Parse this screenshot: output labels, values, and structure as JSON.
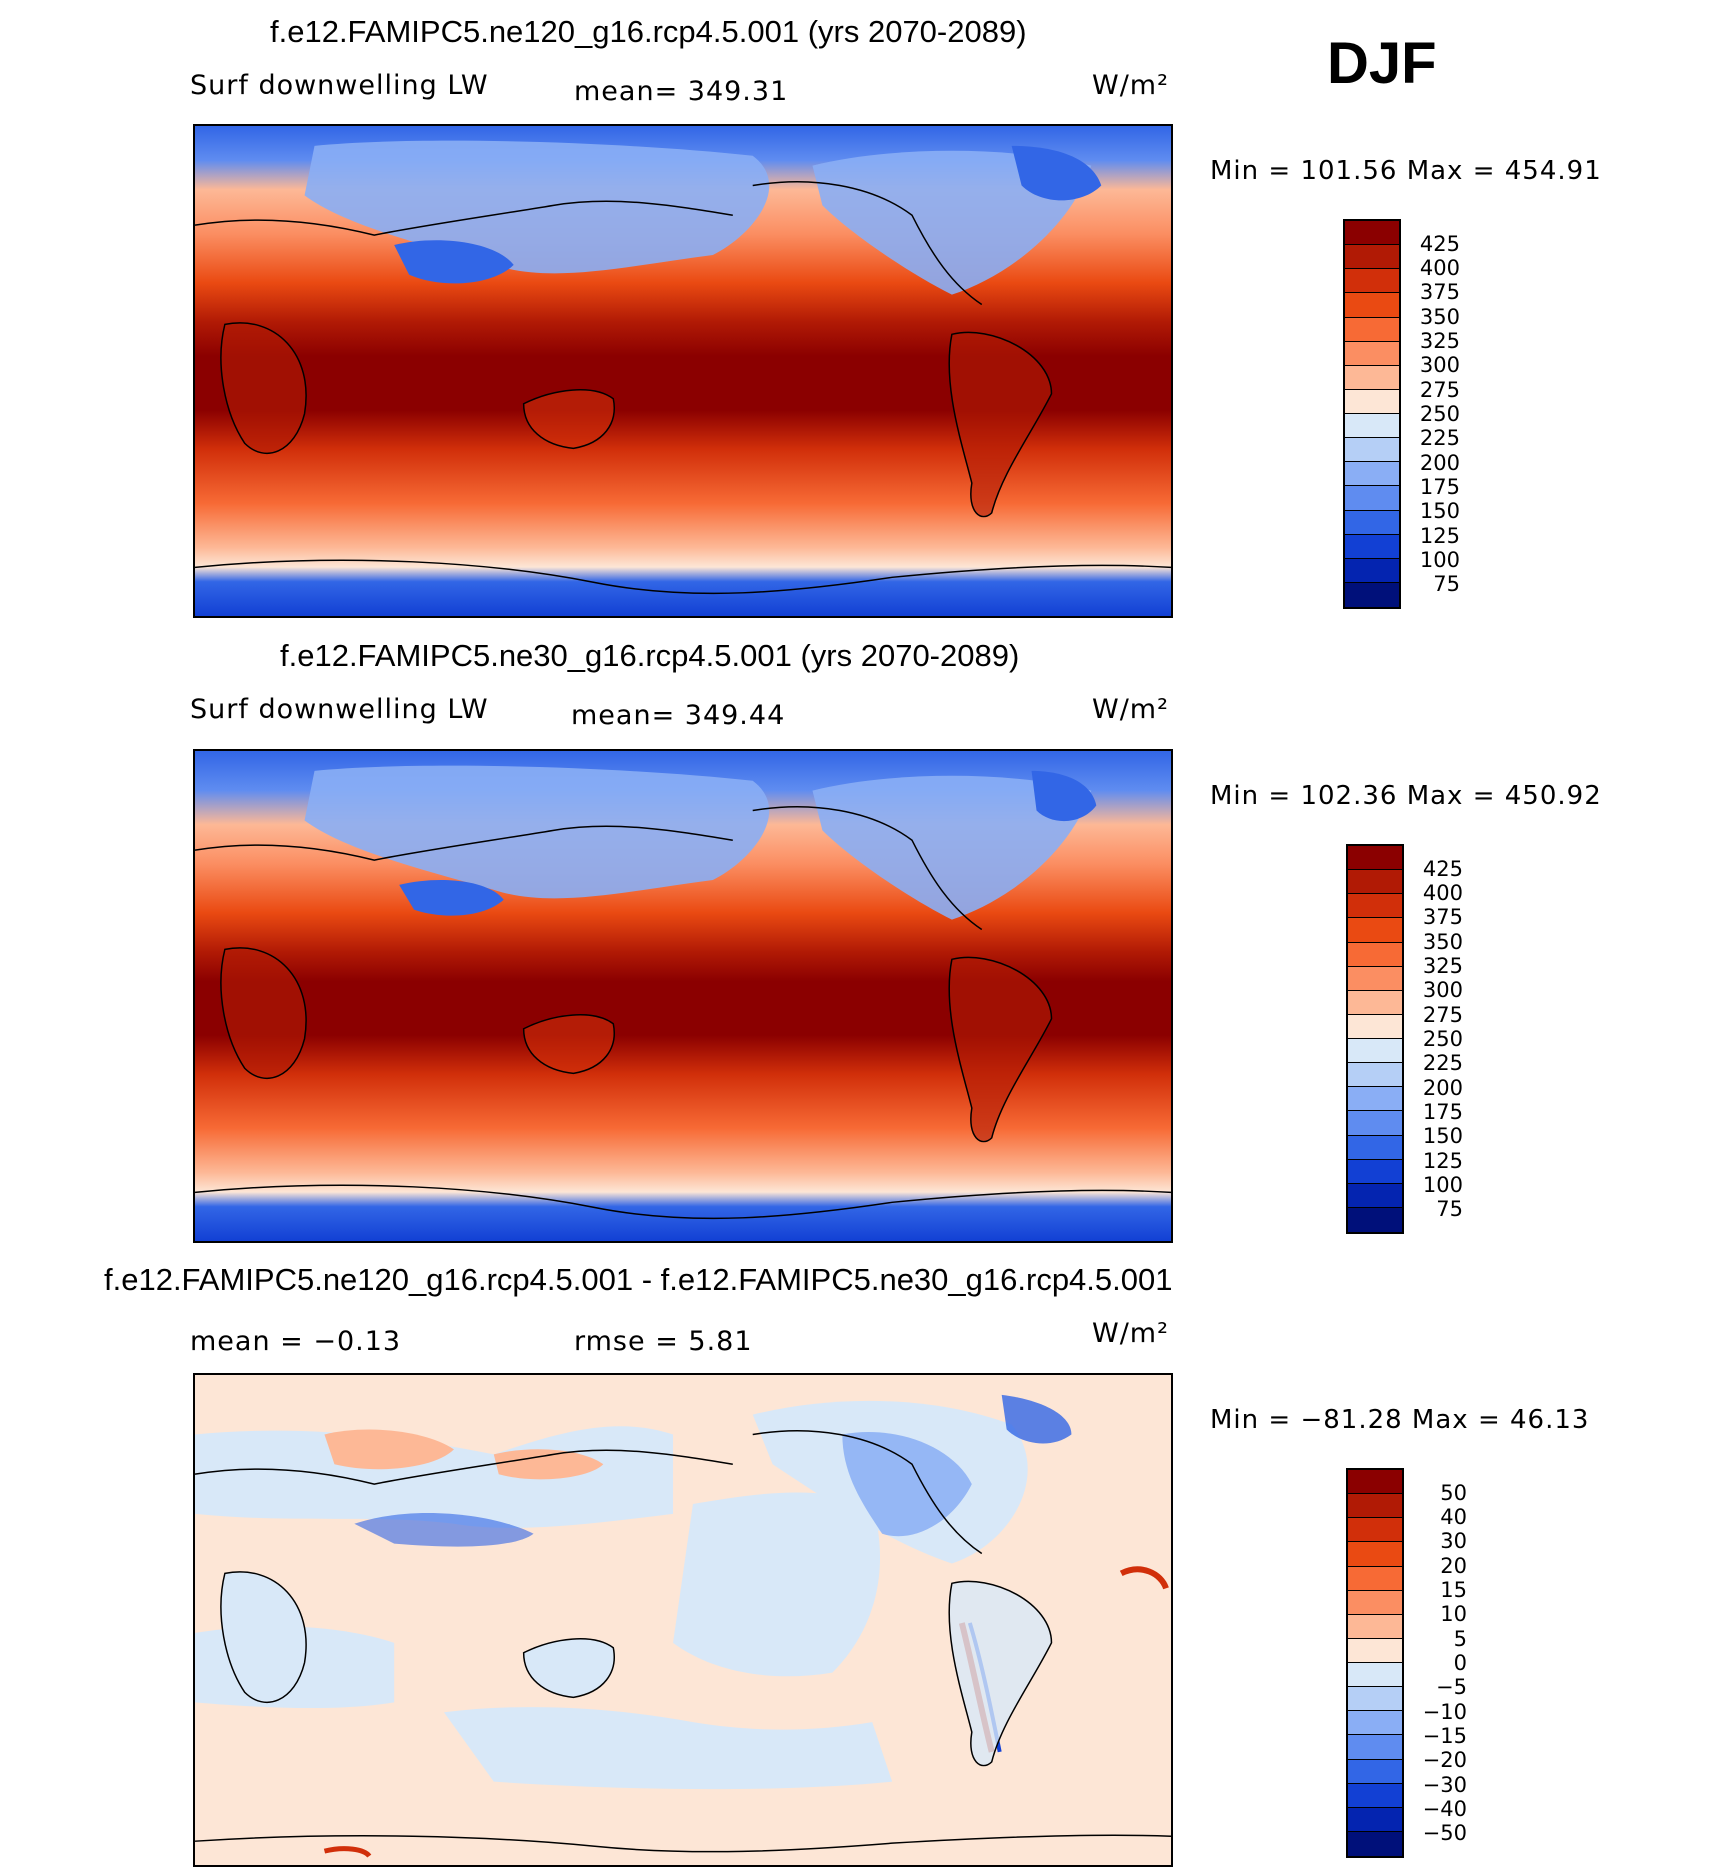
{
  "season": "DJF",
  "units": "W/m²",
  "panels": [
    {
      "title": "f.e12.FAMIPC5.ne120_g16.rcp4.5.001 (yrs 2070-2089)",
      "variable": "Surf downwelling LW",
      "mean_text": "mean= 349.31",
      "minmax_text": "Min = 101.56 Max = 454.91",
      "colorbar_labels": [
        "425",
        "400",
        "375",
        "350",
        "325",
        "300",
        "275",
        "250",
        "225",
        "200",
        "175",
        "150",
        "125",
        "100",
        "75"
      ]
    },
    {
      "title": "f.e12.FAMIPC5.ne30_g16.rcp4.5.001 (yrs 2070-2089)",
      "variable": "Surf downwelling LW",
      "mean_text": "mean= 349.44",
      "minmax_text": "Min = 102.36 Max = 450.92",
      "colorbar_labels": [
        "425",
        "400",
        "375",
        "350",
        "325",
        "300",
        "275",
        "250",
        "225",
        "200",
        "175",
        "150",
        "125",
        "100",
        "75"
      ]
    },
    {
      "title": "f.e12.FAMIPC5.ne120_g16.rcp4.5.001 - f.e12.FAMIPC5.ne30_g16.rcp4.5.001",
      "variable": "mean = −0.13",
      "mean_text": "rmse = 5.81",
      "minmax_text": "Min = −81.28 Max = 46.13",
      "colorbar_labels": [
        "50",
        "40",
        "30",
        "20",
        "15",
        "10",
        "5",
        "0",
        "−5",
        "−10",
        "−15",
        "−20",
        "−30",
        "−40",
        "−50"
      ]
    }
  ],
  "colors": {
    "abs_scale": [
      "#8b0000",
      "#b11a05",
      "#d12f0a",
      "#ea4a12",
      "#f76a35",
      "#fb8e62",
      "#fdb896",
      "#fde6d6",
      "#d8e8f8",
      "#b5cff6",
      "#8aaef5",
      "#5f8cf0",
      "#3266e6",
      "#1240d4",
      "#0424b0",
      "#00107a"
    ],
    "diff_scale": [
      "#8b0000",
      "#b11a05",
      "#d12f0a",
      "#ea4a12",
      "#f76a35",
      "#fb8e62",
      "#fdb896",
      "#fde6d6",
      "#d8e8f8",
      "#b5cff6",
      "#8aaef5",
      "#5f8cf0",
      "#3266e6",
      "#1240d4",
      "#0424b0",
      "#00107a"
    ]
  }
}
